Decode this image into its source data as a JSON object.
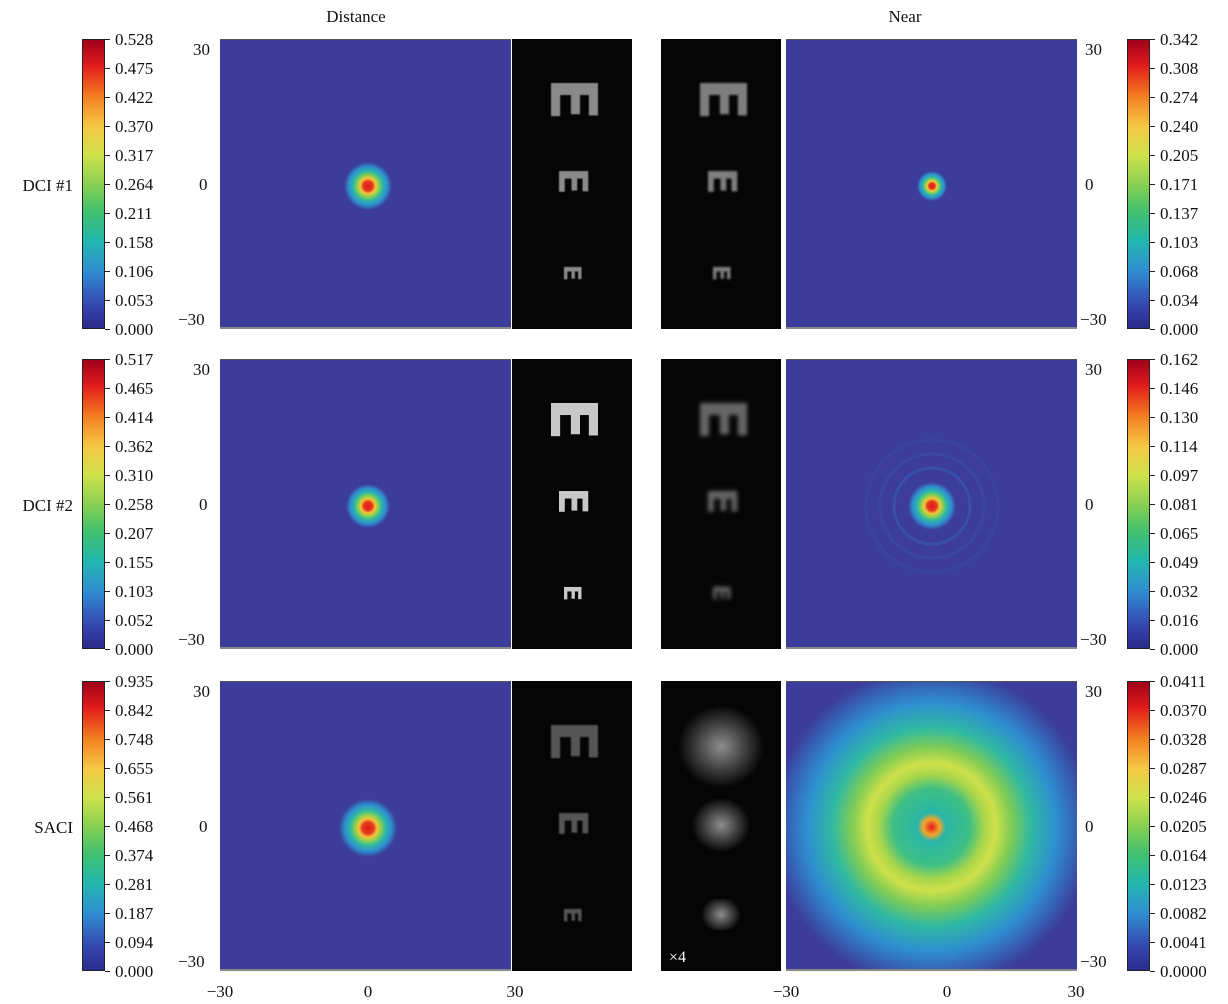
{
  "columns": {
    "distance": "Distance",
    "near": "Near"
  },
  "rows": [
    {
      "label": "DCI #1",
      "distance_scale": [
        "0.528",
        "0.475",
        "0.422",
        "0.370",
        "0.317",
        "0.264",
        "0.211",
        "0.158",
        "0.106",
        "0.053",
        "0.000"
      ],
      "near_scale": [
        "0.342",
        "0.308",
        "0.274",
        "0.240",
        "0.205",
        "0.171",
        "0.137",
        "0.103",
        "0.068",
        "0.034",
        "0.000"
      ]
    },
    {
      "label": "DCI #2",
      "distance_scale": [
        "0.517",
        "0.465",
        "0.414",
        "0.362",
        "0.310",
        "0.258",
        "0.207",
        "0.155",
        "0.103",
        "0.052",
        "0.000"
      ],
      "near_scale": [
        "0.162",
        "0.146",
        "0.130",
        "0.114",
        "0.097",
        "0.081",
        "0.065",
        "0.049",
        "0.032",
        "0.016",
        "0.000"
      ]
    },
    {
      "label": "SACI",
      "distance_scale": [
        "0.935",
        "0.842",
        "0.748",
        "0.655",
        "0.561",
        "0.468",
        "0.374",
        "0.281",
        "0.187",
        "0.094",
        "0.000"
      ],
      "near_scale": [
        "0.0411",
        "0.0370",
        "0.0328",
        "0.0287",
        "0.0246",
        "0.0205",
        "0.0164",
        "0.0123",
        "0.0082",
        "0.0041",
        "0.0000"
      ]
    }
  ],
  "axis_ticks": {
    "top": "30",
    "mid": "0",
    "bottom": "−30"
  },
  "x_ticks": [
    "−30",
    "0",
    "30"
  ],
  "optotype": "E",
  "scale_note": "×4",
  "colors": {
    "background": "#3c3d9b",
    "peak": "#e01010",
    "chart_bg": "#050505"
  }
}
